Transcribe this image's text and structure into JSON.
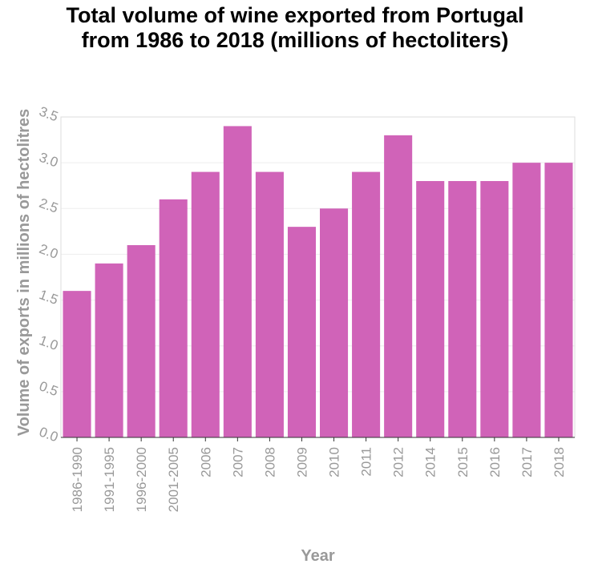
{
  "chart_data": {
    "type": "bar",
    "title_line1": "Total volume of wine exported from Portugal",
    "title_line2": "from 1986 to 2018 (millions of hectoliters)",
    "xlabel": "Year",
    "ylabel": "Volume of exports in millions of hectolitres",
    "categories": [
      "1986-1990",
      "1991-1995",
      "1996-2000",
      "2001-2005",
      "2006",
      "2007",
      "2008",
      "2009",
      "2010",
      "2011",
      "2012",
      "2014",
      "2015",
      "2016",
      "2017",
      "2018"
    ],
    "values": [
      1.6,
      1.9,
      2.1,
      2.6,
      2.9,
      3.4,
      2.9,
      2.3,
      2.5,
      2.9,
      3.3,
      2.8,
      2.8,
      2.8,
      3.0,
      3.0
    ],
    "ylim": [
      0,
      3.5
    ],
    "yticks": [
      "0.0",
      "0.5",
      "1.0",
      "1.5",
      "2.0",
      "2.5",
      "3.0",
      "3.5"
    ],
    "grid": true,
    "bar_color": "#d063b8"
  }
}
